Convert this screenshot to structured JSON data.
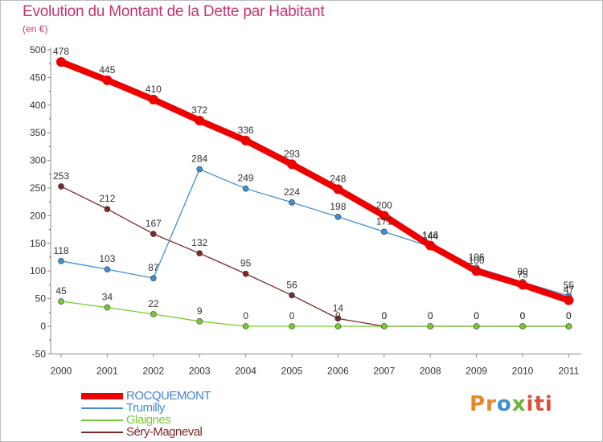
{
  "chart_data": {
    "type": "line",
    "title": "Evolution du Montant de la Dette par Habitant",
    "subtitle": "(en €)",
    "xlabel": "",
    "ylabel": "",
    "x": [
      "2000",
      "2001",
      "2002",
      "2003",
      "2004",
      "2005",
      "2006",
      "2007",
      "2008",
      "2009",
      "2010",
      "2011"
    ],
    "ylim": [
      -50,
      500
    ],
    "yticks": [
      -50,
      0,
      50,
      100,
      150,
      200,
      250,
      300,
      350,
      400,
      450,
      500
    ],
    "grid": false,
    "legend_position": "bottom-left",
    "series": [
      {
        "name": "ROCQUEMONT",
        "color": "#ee0000",
        "values": [
          478,
          445,
          410,
          372,
          336,
          293,
          248,
          200,
          146,
          100,
          75,
          47
        ],
        "labels": [
          "478",
          "445",
          "410",
          "372",
          "336",
          "293",
          "248",
          "200",
          "146",
          "100",
          "75",
          "47"
        ]
      },
      {
        "name": "Trumilly",
        "color": "#3f8fd2",
        "values": [
          118,
          103,
          87,
          284,
          249,
          224,
          198,
          171,
          144,
          106,
          80,
          55
        ],
        "labels": [
          "118",
          "103",
          "87",
          "284",
          "249",
          "224",
          "198",
          "171",
          "144",
          "106",
          "80",
          "55"
        ]
      },
      {
        "name": "Glaignes",
        "color": "#77cc33",
        "values": [
          45,
          34,
          22,
          9,
          0,
          0,
          0,
          0,
          0,
          0,
          0,
          0
        ],
        "labels": [
          "45",
          "34",
          "22",
          "9",
          "0",
          "0",
          "0",
          "0",
          "0",
          "0",
          "0",
          "0"
        ]
      },
      {
        "name": "Séry-Magneval",
        "color": "#7a2a2a",
        "values": [
          253,
          212,
          167,
          132,
          95,
          56,
          14,
          0,
          0,
          0,
          0,
          0
        ],
        "labels": [
          "253",
          "212",
          "167",
          "132",
          "95",
          "56",
          "14",
          "0",
          "0",
          "0",
          "0",
          "0"
        ]
      }
    ]
  },
  "logo": {
    "part1": "Pr",
    "part2": "o",
    "part3": "x",
    "part4": "iti"
  }
}
